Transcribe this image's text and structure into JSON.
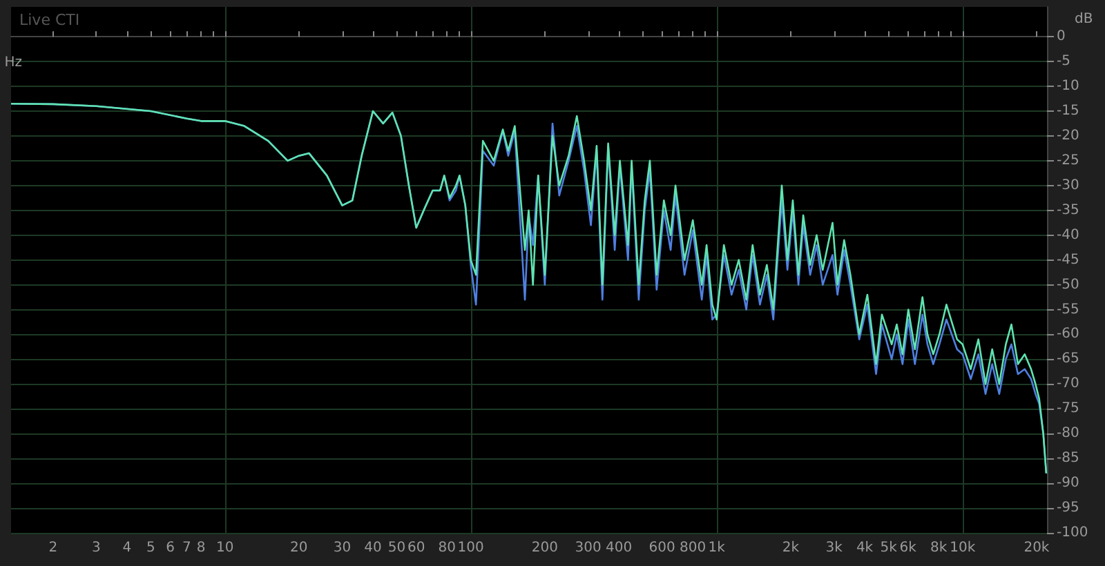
{
  "chart_data": {
    "type": "line",
    "xlabel": "Hz",
    "ylabel": "dB",
    "annotations": [
      "Live CTI"
    ],
    "log": "x",
    "x": [
      1.35,
      2,
      3,
      5,
      7,
      8,
      10,
      12,
      15,
      18,
      20,
      22,
      26,
      30,
      33,
      36,
      40,
      44,
      48,
      52,
      56,
      60,
      65,
      70,
      75,
      78,
      82,
      87,
      90,
      95,
      100,
      105,
      112,
      124,
      135,
      142,
      151,
      166,
      172,
      179,
      188,
      200,
      215,
      229,
      250,
      270,
      289,
      308,
      325,
      343,
      362,
      385,
      404,
      436,
      451,
      482,
      510,
      535,
      570,
      610,
      650,
      680,
      740,
      800,
      870,
      910,
      960,
      1000,
      1070,
      1150,
      1230,
      1320,
      1400,
      1500,
      1600,
      1700,
      1840,
      1940,
      2040,
      2150,
      2250,
      2400,
      2550,
      2700,
      2960,
      3100,
      3300,
      3500,
      3800,
      4100,
      4450,
      4700,
      5150,
      5400,
      5700,
      6020,
      6400,
      6870,
      7200,
      7600,
      8050,
      8600,
      9500,
      10000,
      10800,
      11600,
      12400,
      13200,
      14100,
      15000,
      15800,
      16800,
      17900,
      19000,
      19800,
      20500,
      21300,
      21900
    ],
    "series": [
      {
        "color": "#4f7fe0",
        "values": [
          -13.5,
          -13.6,
          -14,
          -15,
          -16.5,
          -17,
          -17,
          -18,
          -21,
          -25,
          -24,
          -23.5,
          -28,
          -34,
          -33,
          -24,
          -15,
          -17.5,
          -15.3,
          -20,
          -30,
          -38.5,
          -34.5,
          -31,
          -31,
          -28,
          -33,
          -31,
          -28,
          -34,
          -46,
          -54,
          -23,
          -26,
          -19,
          -24,
          -19,
          -53,
          -36,
          -42,
          -28,
          -50,
          -17.5,
          -32,
          -25,
          -18,
          -27,
          -38,
          -23,
          -53,
          -22,
          -43,
          -26,
          -45,
          -26,
          -53,
          -35,
          -27,
          -51,
          -35,
          -43,
          -32,
          -48,
          -39,
          -53,
          -44,
          -57,
          -56,
          -44,
          -52,
          -47,
          -55,
          -44,
          -54,
          -48,
          -57,
          -33,
          -47,
          -35,
          -50,
          -38,
          -48,
          -42,
          -50,
          -44,
          -52,
          -43,
          -50,
          -61,
          -54,
          -68,
          -58,
          -65,
          -60,
          -66,
          -57,
          -66,
          -56,
          -62,
          -66,
          -62,
          -57,
          -63,
          -64,
          -69,
          -64,
          -72,
          -66,
          -72,
          -65,
          -62,
          -68,
          -67,
          -69,
          -72,
          -74,
          -80,
          -88
        ]
      },
      {
        "color": "#5fe3b0",
        "values": [
          -13.5,
          -13.6,
          -14,
          -15,
          -16.5,
          -17,
          -17,
          -18,
          -21,
          -25,
          -24,
          -23.5,
          -28,
          -34,
          -33,
          -24,
          -15,
          -17.5,
          -15.3,
          -20,
          -30,
          -38.5,
          -34.5,
          -31,
          -31,
          -28,
          -32.5,
          -30,
          -28,
          -34,
          -45,
          -48,
          -21,
          -25,
          -18.7,
          -23,
          -18,
          -43,
          -35,
          -50,
          -28,
          -48,
          -20,
          -30,
          -24,
          -16,
          -25,
          -35,
          -22,
          -50,
          -21.5,
          -40,
          -25,
          -42,
          -25,
          -50,
          -33,
          -25,
          -48,
          -33,
          -40,
          -30,
          -45,
          -37,
          -50,
          -42,
          -54,
          -57,
          -42,
          -50,
          -45,
          -53,
          -42,
          -52,
          -46,
          -55,
          -30,
          -45,
          -33,
          -48,
          -36,
          -46,
          -40,
          -47,
          -37.5,
          -50,
          -41,
          -48,
          -60,
          -52,
          -66,
          -56,
          -62,
          -58,
          -64,
          -55,
          -63,
          -52.5,
          -60,
          -64,
          -60,
          -54,
          -61,
          -62,
          -67,
          -61,
          -70,
          -63,
          -70,
          -62,
          -58,
          -66,
          -64,
          -67,
          -70,
          -73,
          -80,
          -88
        ]
      }
    ],
    "xlim": [
      1.35,
      22050
    ],
    "ylim": [
      -100,
      6
    ],
    "xticks": [
      {
        "value": 2,
        "label": "2"
      },
      {
        "value": 3,
        "label": "3"
      },
      {
        "value": 4,
        "label": "4"
      },
      {
        "value": 5,
        "label": "5"
      },
      {
        "value": 6,
        "label": "6"
      },
      {
        "value": 7,
        "label": "7"
      },
      {
        "value": 8,
        "label": "8"
      },
      {
        "value": 9,
        "label": null
      },
      {
        "value": 10,
        "label": "10"
      },
      {
        "value": 20,
        "label": "20"
      },
      {
        "value": 30,
        "label": "30"
      },
      {
        "value": 40,
        "label": "40"
      },
      {
        "value": 50,
        "label": "50"
      },
      {
        "value": 60,
        "label": "60"
      },
      {
        "value": 70,
        "label": null
      },
      {
        "value": 80,
        "label": "80"
      },
      {
        "value": 90,
        "label": null
      },
      {
        "value": 100,
        "label": "100"
      },
      {
        "value": 200,
        "label": "200"
      },
      {
        "value": 300,
        "label": "300"
      },
      {
        "value": 400,
        "label": "400"
      },
      {
        "value": 500,
        "label": null
      },
      {
        "value": 600,
        "label": "600"
      },
      {
        "value": 700,
        "label": null
      },
      {
        "value": 800,
        "label": "800"
      },
      {
        "value": 900,
        "label": null
      },
      {
        "value": 1000,
        "label": "1k"
      },
      {
        "value": 2000,
        "label": "2k"
      },
      {
        "value": 3000,
        "label": "3k"
      },
      {
        "value": 4000,
        "label": "4k"
      },
      {
        "value": 5000,
        "label": "5k"
      },
      {
        "value": 6000,
        "label": "6k"
      },
      {
        "value": 7000,
        "label": null
      },
      {
        "value": 8000,
        "label": "8k"
      },
      {
        "value": 9000,
        "label": null
      },
      {
        "value": 10000,
        "label": "10k"
      },
      {
        "value": 20000,
        "label": "20k"
      }
    ],
    "yticks": [
      -100,
      -95,
      -90,
      -85,
      -80,
      -75,
      -70,
      -65,
      -60,
      -55,
      -50,
      -45,
      -40,
      -35,
      -30,
      -25,
      -20,
      -15,
      -10,
      -5,
      0
    ],
    "grid": true,
    "marker": "none",
    "line_style": "solid"
  }
}
